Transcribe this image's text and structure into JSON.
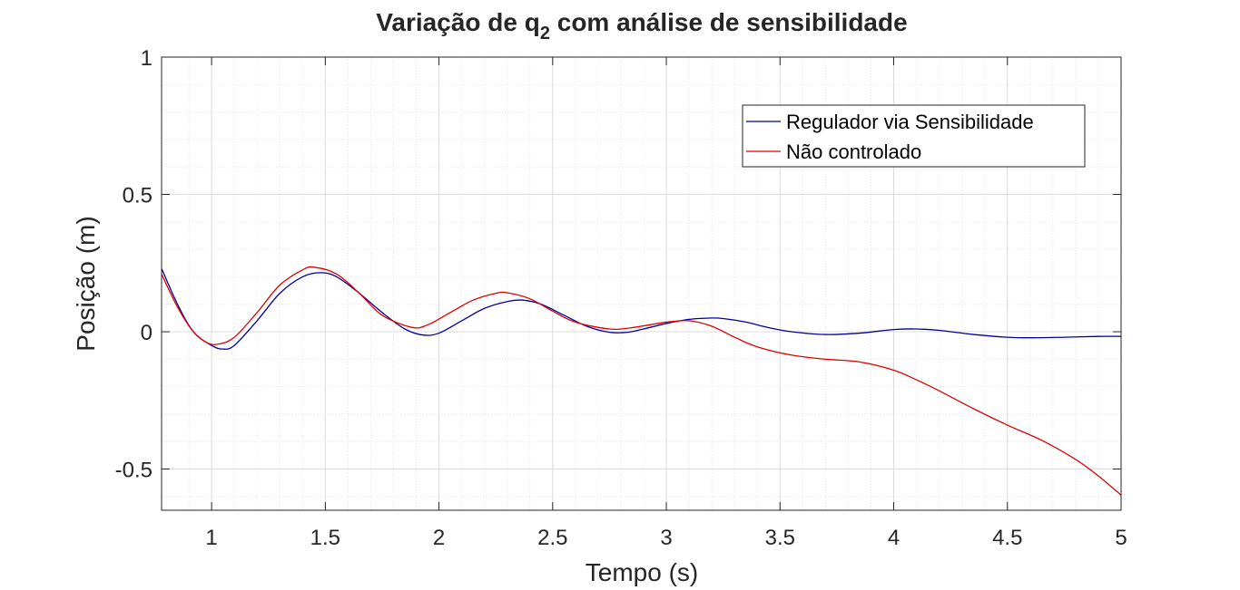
{
  "chart_data": {
    "type": "line",
    "title_main": "Variação de q",
    "title_sub": "2",
    "title_rest": " com análise de sensibilidade",
    "xlabel": "Tempo (s)",
    "ylabel": "Posição (m)",
    "xlim": [
      0.78,
      5
    ],
    "ylim": [
      -0.65,
      1
    ],
    "xticks": [
      1,
      1.5,
      2,
      2.5,
      3,
      3.5,
      4,
      4.5,
      5
    ],
    "xtick_labels": [
      "1",
      "1.5",
      "2",
      "2.5",
      "3",
      "3.5",
      "4",
      "4.5",
      "5"
    ],
    "yticks": [
      -0.5,
      0,
      0.5,
      1
    ],
    "ytick_labels": [
      "-0.5",
      "0",
      "0.5",
      "1"
    ],
    "grid": true,
    "minor_grid": true,
    "legend_position": "top-right",
    "series": [
      {
        "name": "Regulador via Sensibilidade",
        "color": "#0000a0",
        "x": [
          0.78,
          0.85,
          0.92,
          1.0,
          1.05,
          1.1,
          1.2,
          1.3,
          1.4,
          1.48,
          1.55,
          1.65,
          1.75,
          1.85,
          1.93,
          2.0,
          2.1,
          2.2,
          2.3,
          2.37,
          2.45,
          2.55,
          2.65,
          2.75,
          2.83,
          2.9,
          3.0,
          3.1,
          3.2,
          3.25,
          3.35,
          3.45,
          3.55,
          3.7,
          3.85,
          4.0,
          4.1,
          4.2,
          4.35,
          4.5,
          4.6,
          4.75,
          4.9,
          5.0
        ],
        "y": [
          0.23,
          0.1,
          0.0,
          -0.05,
          -0.063,
          -0.05,
          0.04,
          0.14,
          0.2,
          0.215,
          0.2,
          0.14,
          0.07,
          0.01,
          -0.012,
          -0.005,
          0.04,
          0.085,
          0.11,
          0.115,
          0.1,
          0.06,
          0.02,
          -0.002,
          -0.002,
          0.01,
          0.03,
          0.045,
          0.05,
          0.048,
          0.035,
          0.015,
          0.0,
          -0.01,
          -0.005,
          0.008,
          0.01,
          0.005,
          -0.01,
          -0.02,
          -0.022,
          -0.02,
          -0.017,
          -0.017
        ]
      },
      {
        "name": "Não controlado",
        "color": "#e00000",
        "x": [
          0.78,
          0.85,
          0.92,
          0.98,
          1.03,
          1.1,
          1.2,
          1.3,
          1.4,
          1.45,
          1.55,
          1.65,
          1.75,
          1.88,
          1.95,
          2.05,
          2.15,
          2.25,
          2.3,
          2.4,
          2.5,
          2.6,
          2.75,
          2.85,
          3.0,
          3.1,
          3.2,
          3.3,
          3.4,
          3.55,
          3.7,
          3.85,
          4.0,
          4.1,
          4.2,
          4.35,
          4.5,
          4.65,
          4.8,
          4.9,
          5.0
        ],
        "y": [
          0.21,
          0.09,
          0.0,
          -0.04,
          -0.045,
          -0.02,
          0.07,
          0.17,
          0.225,
          0.235,
          0.21,
          0.14,
          0.06,
          0.016,
          0.025,
          0.07,
          0.115,
          0.14,
          0.142,
          0.12,
          0.075,
          0.035,
          0.01,
          0.015,
          0.035,
          0.04,
          0.02,
          -0.02,
          -0.055,
          -0.085,
          -0.1,
          -0.11,
          -0.14,
          -0.175,
          -0.215,
          -0.28,
          -0.34,
          -0.395,
          -0.465,
          -0.525,
          -0.595
        ]
      }
    ]
  }
}
